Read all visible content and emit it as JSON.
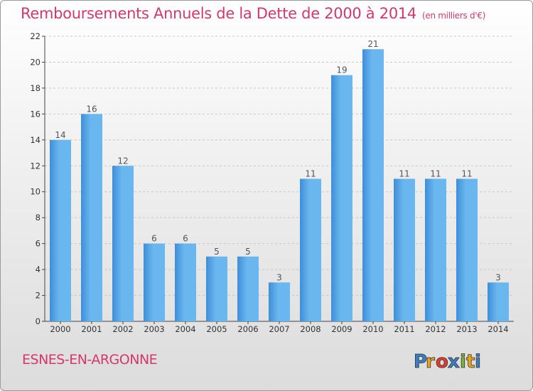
{
  "chart_data": {
    "type": "bar",
    "title": "Remboursements Annuels de la Dette de 2000 à 2014",
    "unit_note": "(en milliers d'€)",
    "categories": [
      "2000",
      "2001",
      "2002",
      "2003",
      "2004",
      "2005",
      "2006",
      "2007",
      "2008",
      "2009",
      "2010",
      "2011",
      "2012",
      "2013",
      "2014"
    ],
    "values": [
      14,
      16,
      12,
      6,
      6,
      5,
      5,
      3,
      11,
      19,
      21,
      11,
      11,
      11,
      3
    ],
    "ylim": [
      0,
      22
    ],
    "yticks": [
      0,
      2,
      4,
      6,
      8,
      10,
      12,
      14,
      16,
      18,
      20,
      22
    ],
    "grid": true,
    "bar_color": "#3f8fd8",
    "bar_color_light": "#6ab6ee",
    "title_color": "#d2396a"
  },
  "footer": {
    "town": "ESNES-EN-ARGONNE",
    "logo_text": "Proxiti"
  },
  "logo_colors": [
    "#3c7ec6",
    "#e8a21c",
    "#e43b2c",
    "#3c7ec6",
    "#7bb832",
    "#e8a21c",
    "#3c7ec6"
  ]
}
